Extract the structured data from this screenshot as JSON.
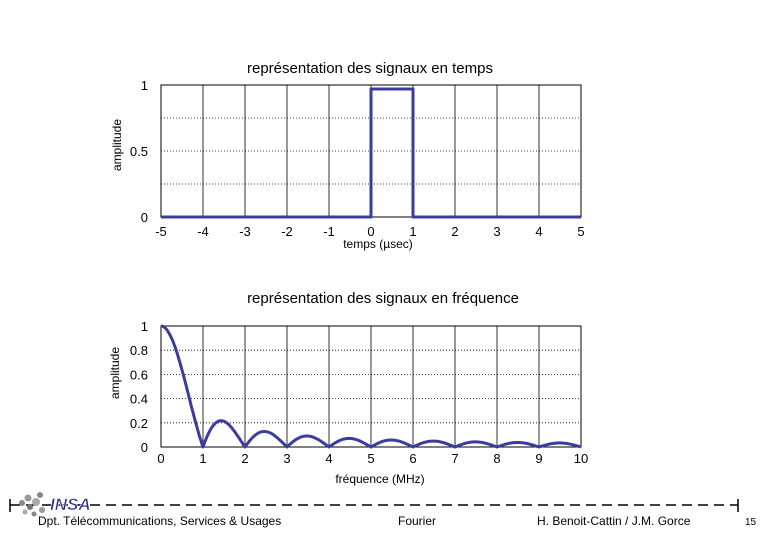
{
  "chart_data": [
    {
      "type": "line",
      "title": "représentation des signaux en temps",
      "xlabel": "temps (µsec)",
      "ylabel": "amplitude",
      "x_ticks": [
        "-5",
        "-4",
        "-3",
        "-2",
        "-1",
        "0",
        "1",
        "2",
        "3",
        "4",
        "5"
      ],
      "y_ticks": [
        "0",
        "0.5",
        "1"
      ],
      "xlim": [
        -5,
        5
      ],
      "ylim": [
        0,
        1
      ],
      "grid": true,
      "series": [
        {
          "x": [
            -5,
            0,
            0,
            1,
            1,
            5
          ],
          "y": [
            0,
            0,
            0.97,
            0.97,
            0,
            0
          ],
          "color": "#3c3c9c"
        }
      ]
    },
    {
      "type": "line",
      "title": "représentation des signaux en fréquence",
      "xlabel": "fréquence (MHz)",
      "ylabel": "amplitude",
      "x_ticks": [
        "0",
        "1",
        "2",
        "3",
        "4",
        "5",
        "6",
        "7",
        "8",
        "9",
        "10"
      ],
      "y_ticks": [
        "0",
        "0.2",
        "0.4",
        "0.6",
        "0.8",
        "1"
      ],
      "xlim": [
        0,
        10
      ],
      "ylim": [
        0,
        1
      ],
      "grid": true,
      "series": [
        {
          "function": "abs_sinc",
          "color": "#3c3c9c"
        }
      ]
    }
  ],
  "footer": {
    "logo_text": "INSA",
    "left": "Dpt. Télécommunications, Services & Usages",
    "center": "Fourier",
    "right": "H. Benoit-Cattin / J.M. Gorce",
    "page": "15"
  }
}
